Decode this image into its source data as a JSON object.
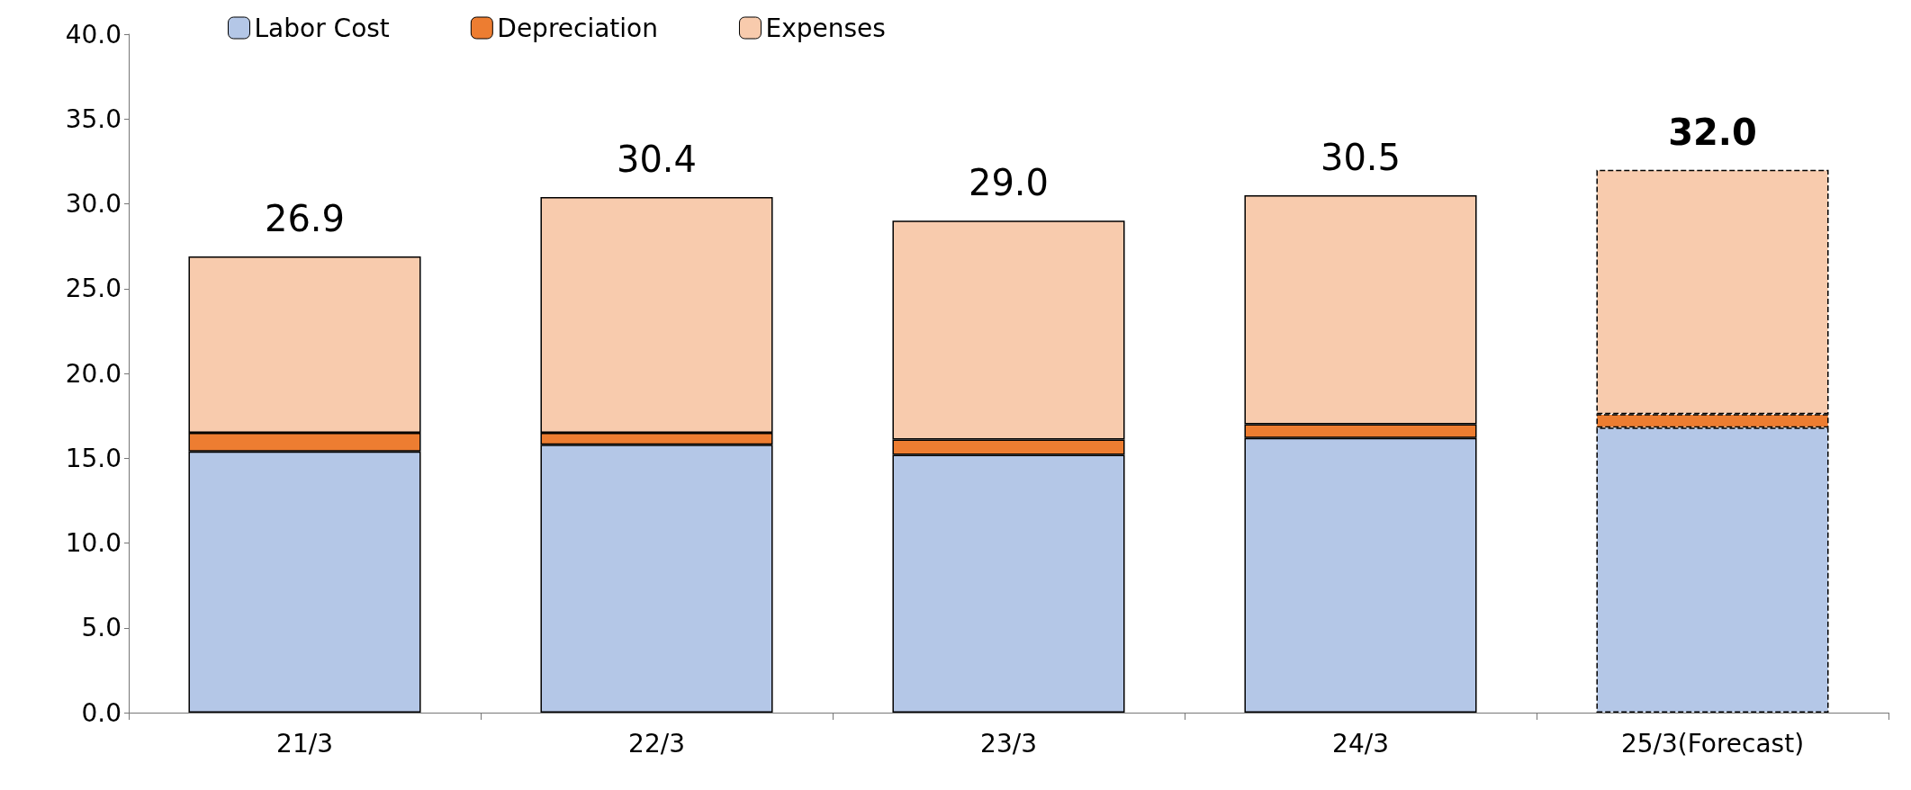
{
  "chart_data": {
    "type": "bar",
    "stacked": true,
    "categories": [
      "21/3",
      "22/3",
      "23/3",
      "24/3",
      "25/3(Forecast)"
    ],
    "series": [
      {
        "name": "Labor Cost",
        "color": "#b4c7e7",
        "values": [
          15.4,
          15.8,
          15.2,
          16.2,
          16.8
        ]
      },
      {
        "name": "Depreciation",
        "color": "#ed7d31",
        "values": [
          1.1,
          0.7,
          0.9,
          0.8,
          0.8
        ]
      },
      {
        "name": "Expenses",
        "color": "#f8cbad",
        "values": [
          10.4,
          13.9,
          12.9,
          13.5,
          14.4
        ]
      }
    ],
    "totals": [
      "26.9",
      "30.4",
      "29.0",
      "30.5",
      "32.0"
    ],
    "ylim": [
      0,
      40
    ],
    "yticks": [
      {
        "value": 0,
        "label": "0.0"
      },
      {
        "value": 5,
        "label": "5.0"
      },
      {
        "value": 10,
        "label": "10.0"
      },
      {
        "value": 15,
        "label": "15.0"
      },
      {
        "value": 20,
        "label": "20.0"
      },
      {
        "value": 25,
        "label": "25.0"
      },
      {
        "value": 30,
        "label": "30.0"
      },
      {
        "value": 35,
        "label": "35.0"
      },
      {
        "value": 40,
        "label": "40.0"
      }
    ],
    "grid": false,
    "legend": "top left"
  }
}
